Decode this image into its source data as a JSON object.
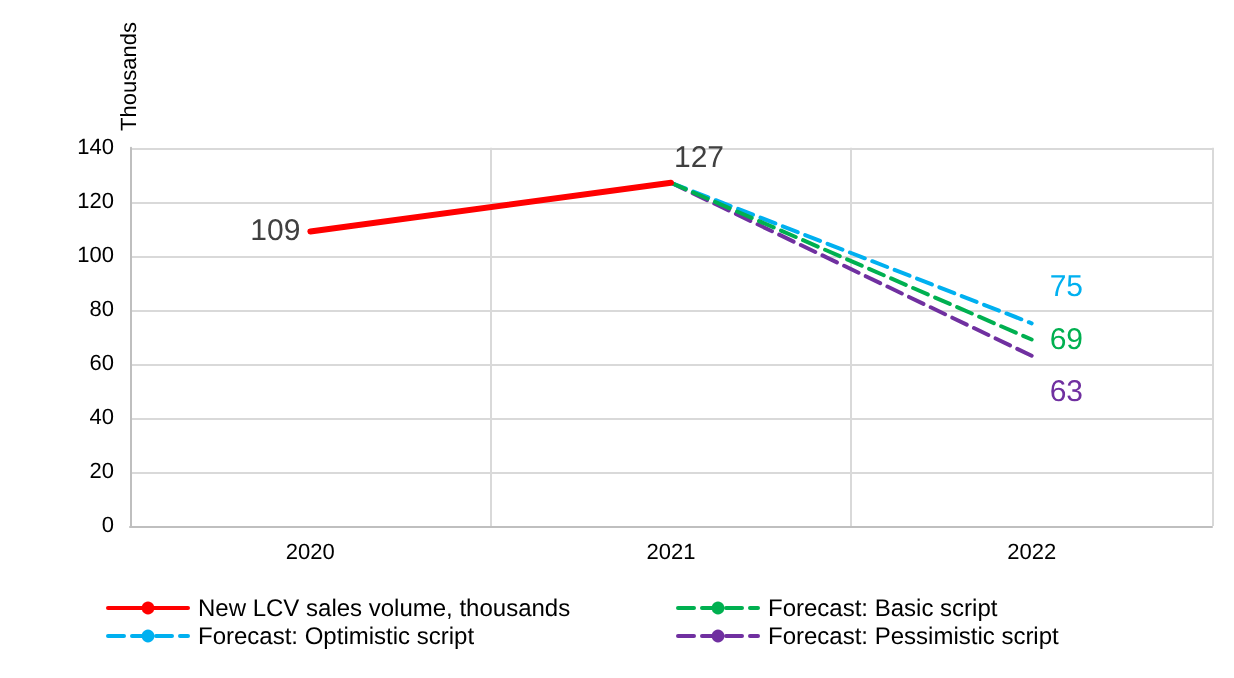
{
  "chart_data": {
    "type": "line",
    "ylabel": "Thousands",
    "categories": [
      "2020",
      "2021",
      "2022"
    ],
    "series": [
      {
        "name": "New LCV sales volume, thousands",
        "color": "#ff0000",
        "line_style": "solid",
        "values": [
          109,
          127,
          null
        ],
        "value_labels": [
          "109",
          "127",
          null
        ]
      },
      {
        "name": "Forecast: Basic script",
        "color": "#00b050",
        "line_style": "dashed",
        "values": [
          null,
          127,
          69
        ],
        "value_labels": [
          null,
          null,
          "69"
        ]
      },
      {
        "name": "Forecast: Optimistic script",
        "color": "#00b0f0",
        "line_style": "dashed",
        "values": [
          null,
          127,
          75
        ],
        "value_labels": [
          null,
          null,
          "75"
        ]
      },
      {
        "name": "Forecast: Pessimistic script",
        "color": "#7030a0",
        "line_style": "dashed",
        "values": [
          null,
          127,
          63
        ],
        "value_labels": [
          null,
          null,
          "63"
        ]
      }
    ],
    "ylim": [
      0,
      140
    ],
    "yticks": [
      0,
      20,
      40,
      60,
      80,
      100,
      120,
      140
    ],
    "grid": true,
    "legend": "bottom",
    "marker": "none"
  }
}
